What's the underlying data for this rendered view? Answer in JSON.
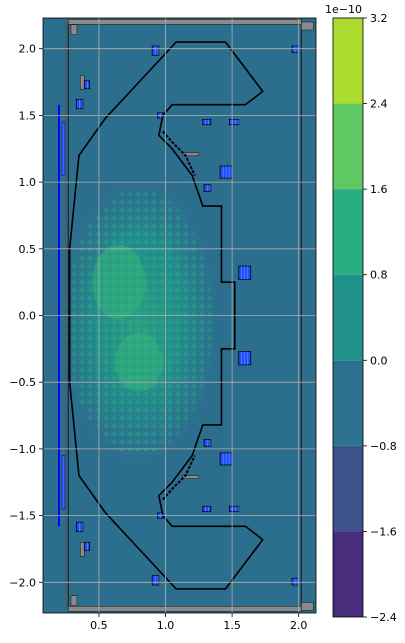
{
  "chart_data": [
    {
      "type": "heatmap",
      "title": "",
      "xlabel": "",
      "ylabel": "",
      "xlim": [
        0.08,
        2.13
      ],
      "ylim": [
        -2.23,
        2.23
      ],
      "xticks": [
        0.5,
        1.0,
        1.5,
        2.0
      ],
      "xtick_labels": [
        "0.5",
        "1.0",
        "1.5",
        "2.0"
      ],
      "yticks": [
        2.0,
        1.5,
        1.0,
        0.5,
        0.0,
        -0.5,
        -1.0,
        -1.5,
        -2.0
      ],
      "ytick_labels": [
        "2.0",
        "1.5",
        "1.0",
        "0.5",
        "0.0",
        "−0.5",
        "−1.0",
        "−1.5",
        "−2.0"
      ],
      "grid": true,
      "background_level_color": "#2c6e8e",
      "field_region": {
        "center": [
          0.8,
          -0.05
        ],
        "r_half_width": 0.6,
        "z_half_height": 1.05
      },
      "levels_shown": [
        {
          "center": [
            0.8,
            0.1
          ],
          "r": 0.36,
          "z": 0.55,
          "color": "#21918c"
        },
        {
          "center": [
            0.65,
            0.25
          ],
          "r": 0.2,
          "z": 0.28,
          "color": "#35b779"
        },
        {
          "center": [
            0.8,
            -0.35
          ],
          "r": 0.18,
          "z": 0.22,
          "color": "#35b779"
        }
      ],
      "vessel_outline": [
        [
          1.08,
          2.05
        ],
        [
          1.45,
          2.05
        ],
        [
          1.73,
          1.68
        ],
        [
          1.6,
          1.58
        ],
        [
          1.05,
          1.58
        ],
        [
          0.98,
          1.5
        ],
        [
          0.95,
          1.35
        ],
        [
          1.05,
          1.25
        ],
        [
          1.2,
          1.05
        ],
        [
          1.28,
          0.82
        ],
        [
          1.42,
          0.82
        ],
        [
          1.42,
          0.25
        ],
        [
          1.52,
          0.25
        ],
        [
          1.52,
          -0.25
        ],
        [
          1.42,
          -0.25
        ],
        [
          1.42,
          -0.82
        ],
        [
          1.28,
          -0.82
        ],
        [
          1.2,
          -1.05
        ],
        [
          1.05,
          -1.25
        ],
        [
          0.95,
          -1.35
        ],
        [
          0.98,
          -1.5
        ],
        [
          1.05,
          -1.58
        ],
        [
          1.6,
          -1.58
        ],
        [
          1.73,
          -1.68
        ],
        [
          1.45,
          -2.05
        ],
        [
          1.08,
          -2.05
        ],
        [
          0.55,
          -1.48
        ],
        [
          0.35,
          -1.2
        ],
        [
          0.28,
          -0.5
        ],
        [
          0.28,
          0.5
        ],
        [
          0.35,
          1.2
        ],
        [
          0.55,
          1.48
        ]
      ],
      "central_solenoid": {
        "r": 0.2,
        "z": [
          -1.58,
          1.58
        ],
        "color": "#0000ff"
      },
      "coils": [
        {
          "r": [
            0.9,
            0.95
          ],
          "z": [
            1.95,
            2.02
          ]
        },
        {
          "r": [
            0.33,
            0.38
          ],
          "z": [
            1.55,
            1.62
          ]
        },
        {
          "r": [
            0.39,
            0.43
          ],
          "z": [
            1.7,
            1.76
          ]
        },
        {
          "r": [
            0.94,
            0.98
          ],
          "z": [
            1.48,
            1.52
          ]
        },
        {
          "r": [
            1.28,
            1.34
          ],
          "z": [
            1.43,
            1.47
          ]
        },
        {
          "r": [
            1.48,
            1.55
          ],
          "z": [
            1.43,
            1.47
          ]
        },
        {
          "r": [
            1.95,
            2.0
          ],
          "z": [
            1.97,
            2.02
          ]
        },
        {
          "r": [
            1.41,
            1.5
          ],
          "z": [
            1.03,
            1.12
          ]
        },
        {
          "r": [
            1.29,
            1.34
          ],
          "z": [
            0.93,
            0.98
          ]
        },
        {
          "r": [
            1.55,
            1.64
          ],
          "z": [
            0.27,
            0.37
          ]
        },
        {
          "r": [
            1.55,
            1.64
          ],
          "z": [
            -0.37,
            -0.27
          ]
        },
        {
          "r": [
            1.29,
            1.34
          ],
          "z": [
            -0.98,
            -0.93
          ]
        },
        {
          "r": [
            1.41,
            1.5
          ],
          "z": [
            -1.12,
            -1.03
          ]
        },
        {
          "r": [
            1.28,
            1.34
          ],
          "z": [
            -1.47,
            -1.43
          ]
        },
        {
          "r": [
            1.48,
            1.55
          ],
          "z": [
            -1.47,
            -1.43
          ]
        },
        {
          "r": [
            0.94,
            0.98
          ],
          "z": [
            -1.52,
            -1.48
          ]
        },
        {
          "r": [
            0.33,
            0.38
          ],
          "z": [
            -1.62,
            -1.55
          ]
        },
        {
          "r": [
            0.39,
            0.43
          ],
          "z": [
            -1.76,
            -1.7
          ]
        },
        {
          "r": [
            0.9,
            0.95
          ],
          "z": [
            -2.02,
            -1.95
          ]
        },
        {
          "r": [
            1.95,
            2.0
          ],
          "z": [
            -2.02,
            -1.97
          ]
        }
      ],
      "colorbar": {
        "scale_label": "1e−10",
        "boundaries": [
          -2.4,
          -1.6,
          -0.8,
          0.0,
          0.8,
          1.6,
          2.4,
          3.2
        ],
        "tick_labels": [
          "−2.4",
          "−1.6",
          "−0.8",
          "0.0",
          "0.8",
          "1.6",
          "2.4",
          "3.2"
        ],
        "colors": [
          "#472d7b",
          "#3b528b",
          "#2c728e",
          "#21918c",
          "#28ae80",
          "#5ec962",
          "#addc30"
        ]
      }
    }
  ]
}
